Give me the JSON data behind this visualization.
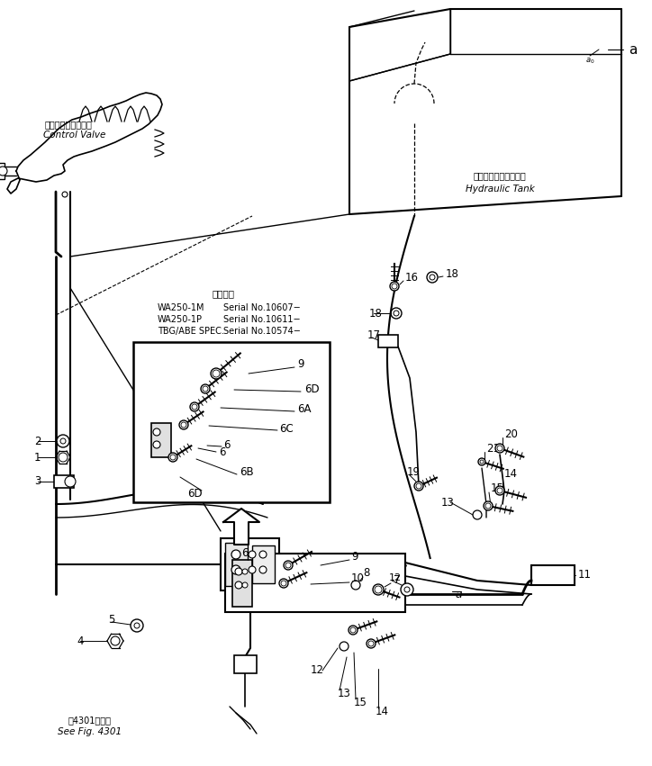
{
  "bg_color": "#ffffff",
  "line_color": "#000000",
  "tank_label_jp": "ハイドロリックタンク",
  "tank_label_en": "Hydraulic Tank",
  "cv_label_jp": "コントロールバルブ",
  "cv_label_en": "Control Valve",
  "spec_lines": [
    "WA250-1M  適用号標   Serial No.10607−",
    "WA250-1P              Serial No.10611−",
    "TBG/ABE SPEC.  Serial No.10574−"
  ],
  "see_fig_jp": "第4301図参照",
  "see_fig_en": "See Fig. 4301"
}
